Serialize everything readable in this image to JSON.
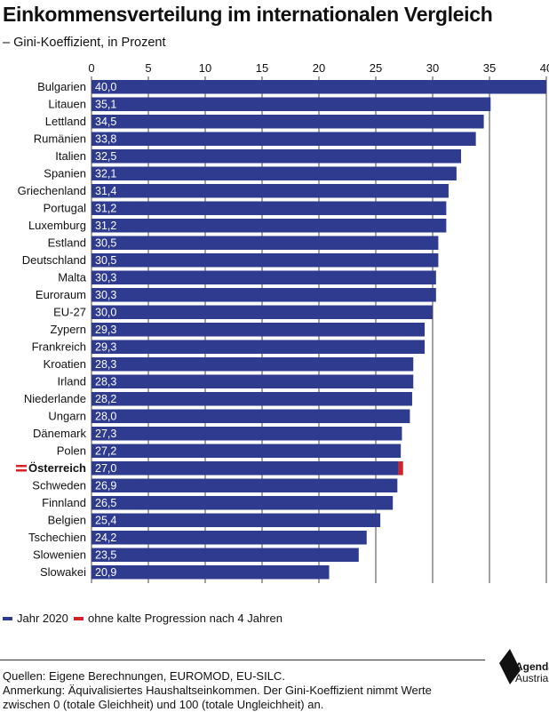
{
  "header": {
    "title": "Einkommensverteilung im internationalen Vergleich",
    "subtitle": "– Gini-Koeffizient, in Prozent"
  },
  "legend": {
    "series_a": "Jahr 2020",
    "series_b": "ohne kalte Progression nach 4 Jahren"
  },
  "footer": {
    "source": "Quellen: Eigene Berechnungen, EUROMOD, EU-SILC.",
    "note_line1": "Anmerkung: Äquivalisiertes Haushaltseinkommen. Der Gini-Koeffizient nimmt Werte",
    "note_line2": "zwischen 0 (totale Gleichheit) und 100 (totale Ungleichheit) an."
  },
  "logo": {
    "line1": "Agenda",
    "line2": "Austria"
  },
  "colors": {
    "bar": "#2e3b8f",
    "highlight": "#d62027",
    "grid": "#444444"
  },
  "chart_data": {
    "type": "bar",
    "orientation": "horizontal",
    "title": "Einkommensverteilung im internationalen Vergleich",
    "subtitle": "– Gini-Koeffizient, in Prozent",
    "xlim": [
      0,
      40
    ],
    "xticks": [
      0,
      5,
      10,
      15,
      20,
      25,
      30,
      35,
      40
    ],
    "grid": true,
    "legend_position": "bottom-left",
    "categories": [
      "Bulgarien",
      "Litauen",
      "Lettland",
      "Rumänien",
      "Italien",
      "Spanien",
      "Griechenland",
      "Portugal",
      "Luxemburg",
      "Estland",
      "Deutschland",
      "Malta",
      "Euroraum",
      "EU-27",
      "Zypern",
      "Frankreich",
      "Kroatien",
      "Irland",
      "Niederlande",
      "Ungarn",
      "Dänemark",
      "Polen",
      "Österreich",
      "Schweden",
      "Finnland",
      "Belgien",
      "Tschechien",
      "Slowenien",
      "Slowakei"
    ],
    "labels": [
      "40,0",
      "35,1",
      "34,5",
      "33,8",
      "32,5",
      "32,1",
      "31,4",
      "31,2",
      "31,2",
      "30,5",
      "30,5",
      "30,3",
      "30,3",
      "30,0",
      "29,3",
      "29,3",
      "28,3",
      "28,3",
      "28,2",
      "28,0",
      "27,3",
      "27,2",
      "27,0",
      "26,9",
      "26,5",
      "25,4",
      "24,2",
      "23,5",
      "20,9"
    ],
    "series": [
      {
        "name": "Jahr 2020",
        "values": [
          40.0,
          35.1,
          34.5,
          33.8,
          32.5,
          32.1,
          31.4,
          31.2,
          31.2,
          30.5,
          30.5,
          30.3,
          30.3,
          30.0,
          29.3,
          29.3,
          28.3,
          28.3,
          28.2,
          28.0,
          27.3,
          27.2,
          27.0,
          26.9,
          26.5,
          25.4,
          24.2,
          23.5,
          20.9
        ]
      },
      {
        "name": "ohne kalte Progression nach 4 Jahren",
        "category": "Österreich",
        "value": 27.4
      }
    ],
    "highlight_category": "Österreich"
  }
}
